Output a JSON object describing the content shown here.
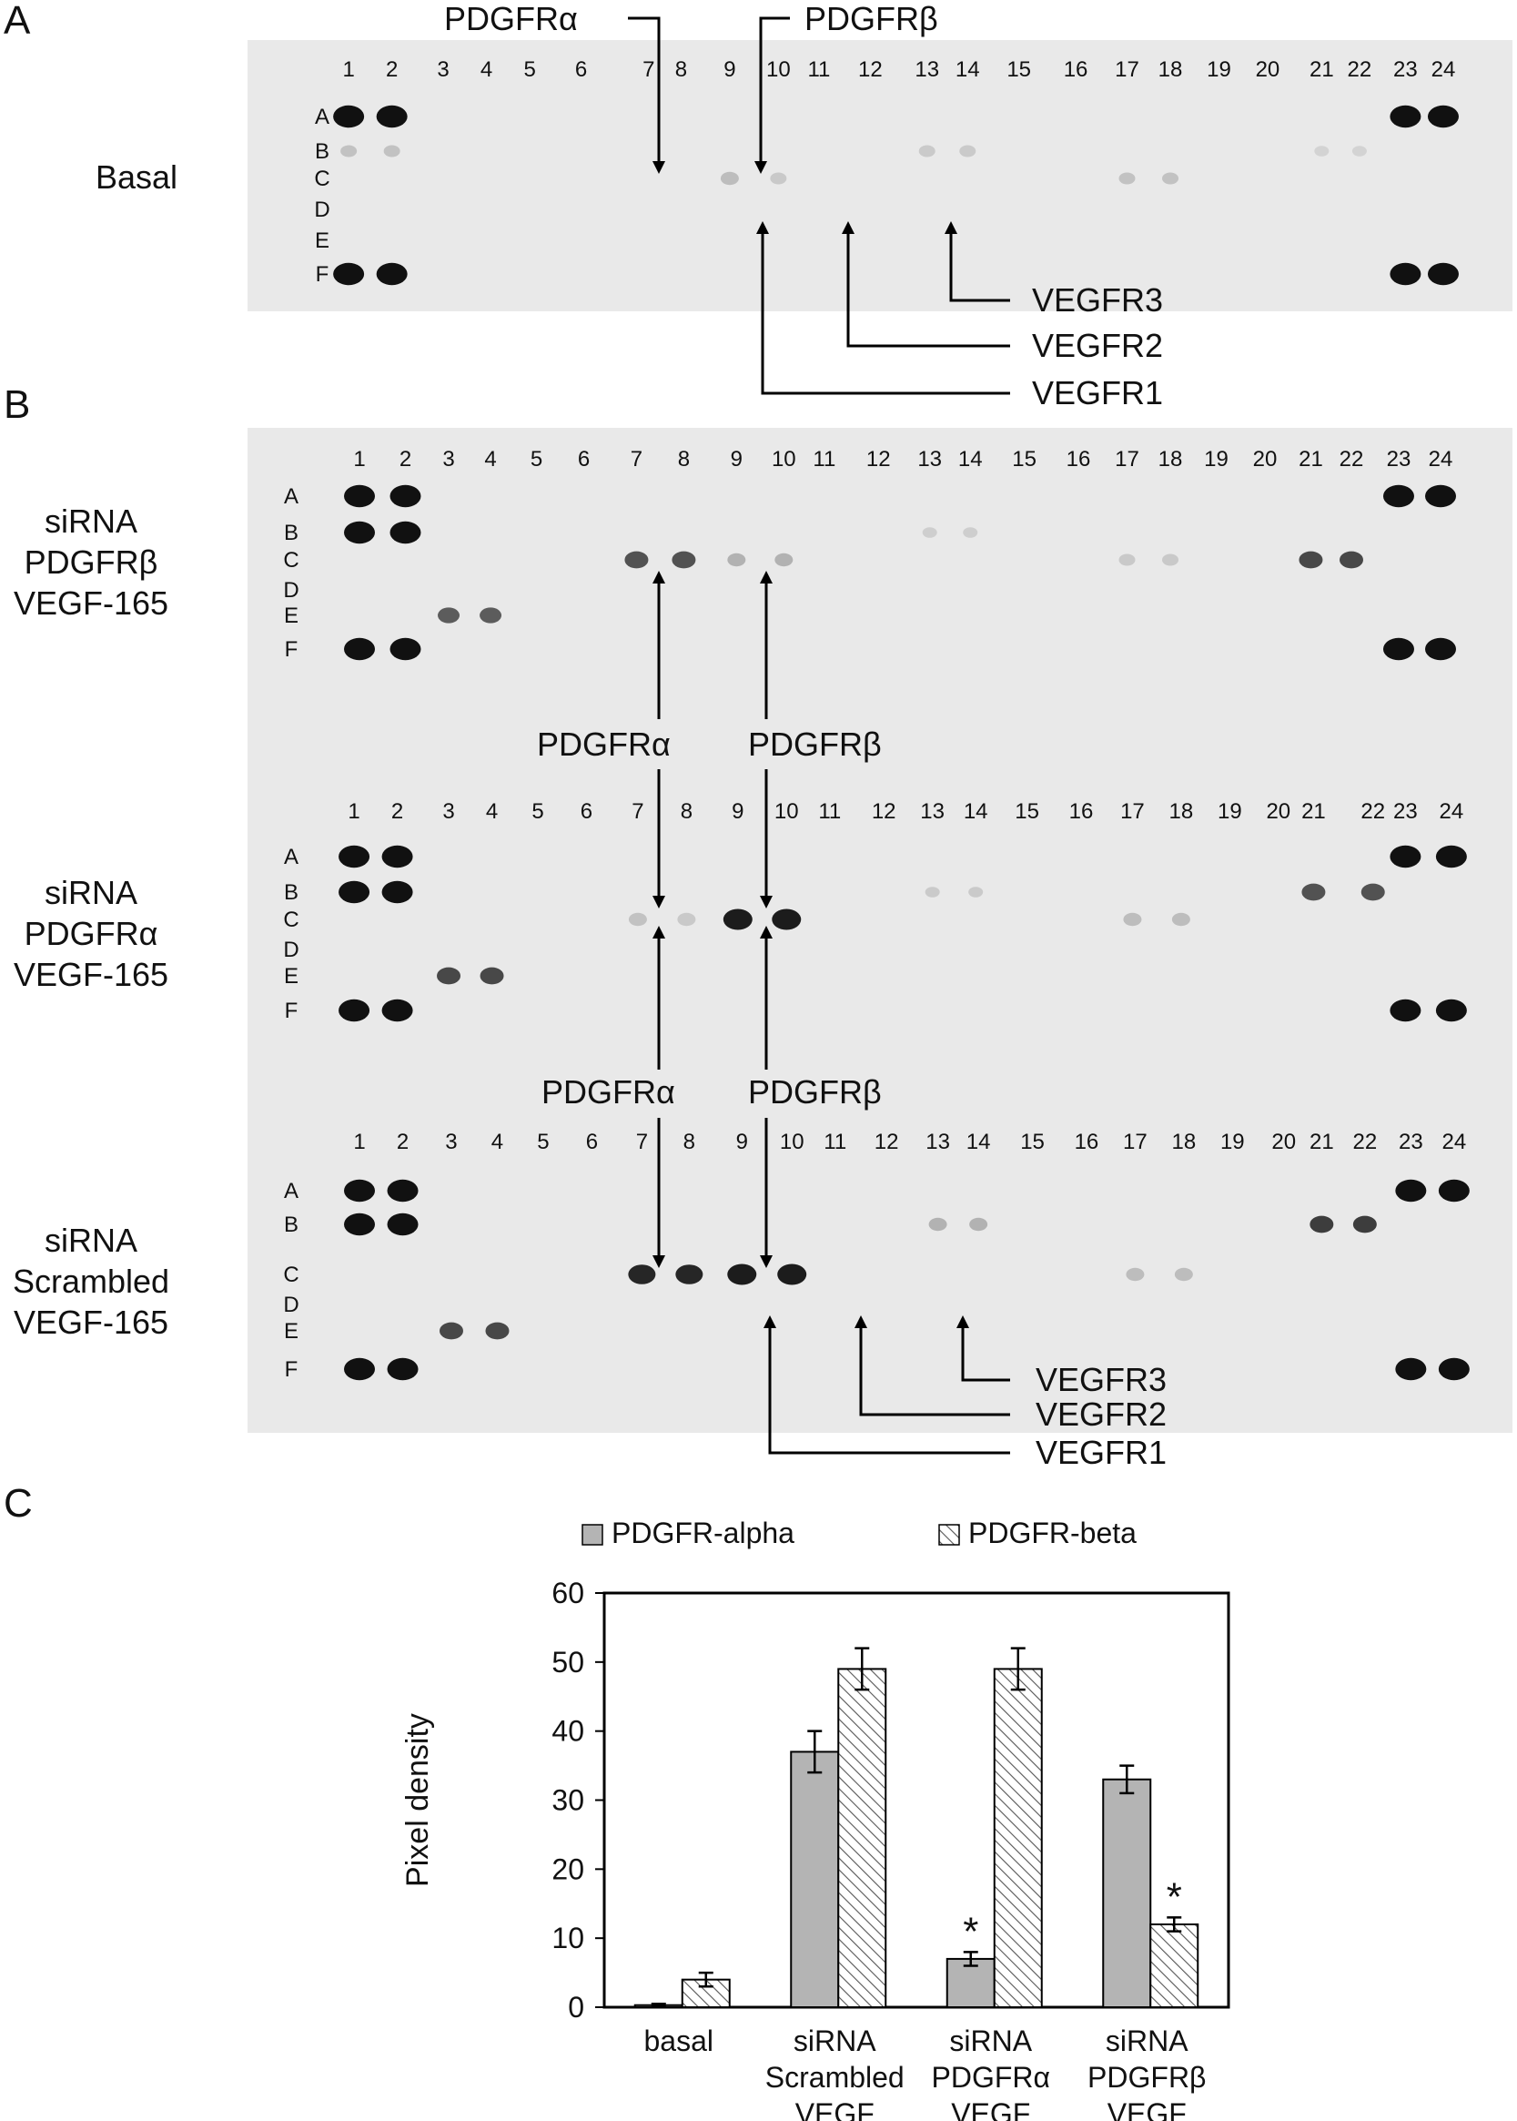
{
  "panels": {
    "a": "A",
    "b": "B",
    "c": "C"
  },
  "columns": [
    "1",
    "2",
    "3",
    "4",
    "5",
    "6",
    "7",
    "8",
    "9",
    "10",
    "11",
    "12",
    "13",
    "14",
    "15",
    "16",
    "17",
    "18",
    "19",
    "20",
    "21",
    "22",
    "23",
    "24"
  ],
  "rows": [
    "A",
    "B",
    "C",
    "D",
    "E",
    "F"
  ],
  "receptors": {
    "pdgfra": "PDGFRα",
    "pdgfrb": "PDGFRβ",
    "vegfr1": "VEGFR1",
    "vegfr2": "VEGFR2",
    "vegfr3": "VEGFR3"
  },
  "conditions": {
    "basal": "Basal",
    "sirna_pdgfrb": [
      "siRNA",
      "PDGFRβ",
      "VEGF-165"
    ],
    "sirna_pdgfra": [
      "siRNA",
      "PDGFRα",
      "VEGF-165"
    ],
    "sirna_scrambled": [
      "siRNA",
      "Scrambled",
      "VEGF-165"
    ]
  },
  "colors": {
    "membrane": "#e9e9e9",
    "spot": "#111111",
    "bar_alpha": "#b4b4b4",
    "bar_beta_hatch": "#555555"
  },
  "chart_data": {
    "type": "bar",
    "legend": [
      "PDGFR-alpha",
      "PDGFR-beta"
    ],
    "legend_position": "top",
    "ylabel": "Pixel density",
    "ylim": [
      0,
      60
    ],
    "yticks": [
      "0",
      "10",
      "20",
      "30",
      "40",
      "50",
      "60"
    ],
    "categories": [
      [
        "basal"
      ],
      [
        "siRNA",
        "Scrambled",
        "VEGF"
      ],
      [
        "siRNA",
        "PDGFRα",
        "VEGF"
      ],
      [
        "siRNA",
        "PDGFRβ",
        "VEGF"
      ]
    ],
    "series": [
      {
        "name": "PDGFR-alpha",
        "values": [
          0.3,
          37,
          7,
          33
        ],
        "errors": [
          0.2,
          3,
          1,
          2
        ]
      },
      {
        "name": "PDGFR-beta",
        "values": [
          4,
          49,
          49,
          12
        ],
        "errors": [
          1,
          3,
          3,
          1
        ]
      }
    ],
    "significance_marker": "*",
    "significant": [
      [
        2,
        0
      ],
      [
        3,
        1
      ]
    ]
  }
}
